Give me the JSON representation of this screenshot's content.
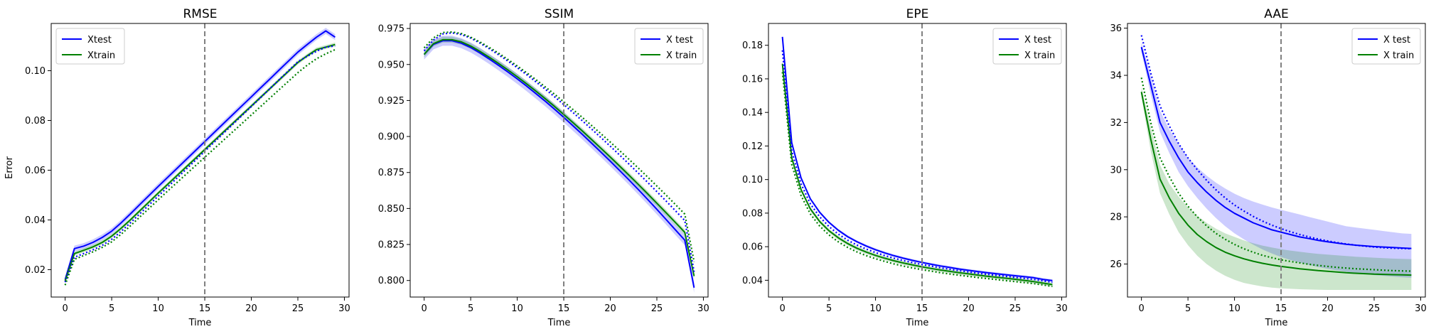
{
  "figure": {
    "ylabel": "Error"
  },
  "colors": {
    "test": "#0000ff",
    "train": "#008000",
    "vline": "#7f7f7f"
  },
  "chart_data": [
    {
      "type": "line",
      "title": "RMSE",
      "xlabel": "Time",
      "ylabel": "Error",
      "xlim": [
        -1.5,
        30.5
      ],
      "ylim": [
        0.009,
        0.119
      ],
      "xticks": [
        0,
        5,
        10,
        15,
        20,
        25,
        30
      ],
      "yticks": [
        0.02,
        0.04,
        0.06,
        0.08,
        0.1
      ],
      "ytick_labels": [
        "0.02",
        "0.04",
        "0.06",
        "0.08",
        "0.10"
      ],
      "vline_x": 15,
      "legend": {
        "position": "top-left",
        "entries": [
          "Xtest",
          "Xtrain"
        ]
      },
      "x": [
        0,
        1,
        2,
        3,
        4,
        5,
        6,
        7,
        8,
        9,
        10,
        11,
        12,
        13,
        14,
        15,
        16,
        17,
        18,
        19,
        20,
        21,
        22,
        23,
        24,
        25,
        26,
        27,
        28,
        29
      ],
      "series": [
        {
          "name": "Xtest",
          "key": "test",
          "style": "solid",
          "values": [
            0.016,
            0.0285,
            0.0295,
            0.031,
            0.033,
            0.0355,
            0.0388,
            0.0424,
            0.0461,
            0.0498,
            0.0535,
            0.0571,
            0.0607,
            0.0643,
            0.0679,
            0.0715,
            0.0751,
            0.0787,
            0.0823,
            0.0859,
            0.0895,
            0.0931,
            0.0967,
            0.1003,
            0.1039,
            0.1075,
            0.1105,
            0.1135,
            0.116,
            0.1135
          ],
          "band": 0.0012
        },
        {
          "name": "Xtrain",
          "key": "train",
          "style": "solid",
          "values": [
            0.0155,
            0.0265,
            0.0278,
            0.0292,
            0.031,
            0.0335,
            0.0366,
            0.04,
            0.0436,
            0.0472,
            0.0508,
            0.0543,
            0.0578,
            0.0613,
            0.0648,
            0.0683,
            0.0718,
            0.0753,
            0.0788,
            0.0823,
            0.0858,
            0.0893,
            0.0928,
            0.0963,
            0.0998,
            0.1033,
            0.106,
            0.1085,
            0.1095,
            0.1105
          ],
          "band": 0.0008
        },
        {
          "key": "test",
          "style": "dotted",
          "values": [
            0.015,
            0.025,
            0.0265,
            0.028,
            0.0298,
            0.0322,
            0.0353,
            0.0388,
            0.0424,
            0.046,
            0.0496,
            0.0532,
            0.0568,
            0.0604,
            0.064,
            0.0676,
            0.0712,
            0.0748,
            0.0784,
            0.082,
            0.0856,
            0.0892,
            0.0928,
            0.0964,
            0.1,
            0.1036,
            0.1058,
            0.1078,
            0.1095,
            0.11
          ]
        },
        {
          "key": "train",
          "style": "dotted",
          "values": [
            0.0138,
            0.0242,
            0.0257,
            0.0272,
            0.029,
            0.0312,
            0.0342,
            0.0376,
            0.0411,
            0.0446,
            0.0481,
            0.0516,
            0.055,
            0.0584,
            0.0618,
            0.0652,
            0.0686,
            0.072,
            0.0754,
            0.0788,
            0.0822,
            0.0856,
            0.089,
            0.0924,
            0.0958,
            0.0992,
            0.1022,
            0.1048,
            0.1068,
            0.1085
          ]
        }
      ]
    },
    {
      "type": "line",
      "title": "SSIM",
      "xlabel": "Time",
      "ylabel": "",
      "xlim": [
        -1.5,
        30.5
      ],
      "ylim": [
        0.7885,
        0.9785
      ],
      "xticks": [
        0,
        5,
        10,
        15,
        20,
        25,
        30
      ],
      "yticks": [
        0.8,
        0.825,
        0.85,
        0.875,
        0.9,
        0.925,
        0.95,
        0.975
      ],
      "ytick_labels": [
        "0.800",
        "0.825",
        "0.850",
        "0.875",
        "0.900",
        "0.925",
        "0.950",
        "0.975"
      ],
      "vline_x": 15,
      "legend": {
        "position": "top-right",
        "entries": [
          "X test",
          "X train"
        ]
      },
      "x": [
        0,
        1,
        2,
        3,
        4,
        5,
        6,
        7,
        8,
        9,
        10,
        11,
        12,
        13,
        14,
        15,
        16,
        17,
        18,
        19,
        20,
        21,
        22,
        23,
        24,
        25,
        26,
        27,
        28,
        29
      ],
      "series": [
        {
          "name": "X test",
          "key": "test",
          "style": "solid",
          "values": [
            0.957,
            0.964,
            0.9665,
            0.9665,
            0.9648,
            0.9618,
            0.958,
            0.9538,
            0.9494,
            0.9448,
            0.94,
            0.935,
            0.9298,
            0.9245,
            0.919,
            0.9133,
            0.9074,
            0.9014,
            0.8953,
            0.8891,
            0.8828,
            0.8764,
            0.8699,
            0.8632,
            0.8564,
            0.8494,
            0.8423,
            0.8351,
            0.828,
            0.795
          ],
          "band": 0.0035
        },
        {
          "name": "X train",
          "key": "train",
          "style": "solid",
          "values": [
            0.957,
            0.9645,
            0.9672,
            0.9672,
            0.9657,
            0.9628,
            0.9591,
            0.955,
            0.9507,
            0.9462,
            0.9415,
            0.9366,
            0.9315,
            0.9263,
            0.9209,
            0.9153,
            0.9096,
            0.9038,
            0.8978,
            0.8918,
            0.8857,
            0.8795,
            0.8732,
            0.8668,
            0.8603,
            0.8537,
            0.847,
            0.8402,
            0.8334,
            0.803
          ],
          "band": 0.002
        },
        {
          "key": "test",
          "style": "dotted",
          "values": [
            0.9595,
            0.967,
            0.9712,
            0.972,
            0.9708,
            0.9684,
            0.9649,
            0.961,
            0.9568,
            0.9524,
            0.9478,
            0.943,
            0.938,
            0.9329,
            0.9276,
            0.9222,
            0.9166,
            0.9109,
            0.9051,
            0.8992,
            0.8932,
            0.8871,
            0.8809,
            0.8746,
            0.8682,
            0.8617,
            0.8551,
            0.8484,
            0.8416,
            0.806
          ]
        },
        {
          "key": "train",
          "style": "dotted",
          "values": [
            0.9615,
            0.9685,
            0.9722,
            0.9726,
            0.9715,
            0.969,
            0.9656,
            0.9618,
            0.9578,
            0.9535,
            0.949,
            0.9443,
            0.9395,
            0.9345,
            0.9294,
            0.9241,
            0.9187,
            0.9132,
            0.9076,
            0.9019,
            0.8961,
            0.8902,
            0.8842,
            0.8781,
            0.8719,
            0.8656,
            0.8592,
            0.8527,
            0.8461,
            0.813
          ]
        }
      ]
    },
    {
      "type": "line",
      "title": "EPE",
      "xlabel": "Time",
      "ylabel": "",
      "xlim": [
        -1.5,
        30.5
      ],
      "ylim": [
        0.03,
        0.193
      ],
      "xticks": [
        0,
        5,
        10,
        15,
        20,
        25,
        30
      ],
      "yticks": [
        0.04,
        0.06,
        0.08,
        0.1,
        0.12,
        0.14,
        0.16,
        0.18
      ],
      "ytick_labels": [
        "0.04",
        "0.06",
        "0.08",
        "0.10",
        "0.12",
        "0.14",
        "0.16",
        "0.18"
      ],
      "vline_x": 15,
      "legend": {
        "position": "top-right",
        "entries": [
          "X test",
          "X train"
        ]
      },
      "x": [
        0,
        1,
        2,
        3,
        4,
        5,
        6,
        7,
        8,
        9,
        10,
        11,
        12,
        13,
        14,
        15,
        16,
        17,
        18,
        19,
        20,
        21,
        22,
        23,
        24,
        25,
        26,
        27,
        28,
        29
      ],
      "series": [
        {
          "name": "X test",
          "key": "test",
          "style": "solid",
          "values": [
            0.185,
            0.122,
            0.101,
            0.0885,
            0.0805,
            0.0745,
            0.0698,
            0.066,
            0.063,
            0.0604,
            0.0582,
            0.0563,
            0.0546,
            0.0531,
            0.0518,
            0.0506,
            0.0495,
            0.0485,
            0.0476,
            0.0467,
            0.0459,
            0.0452,
            0.0445,
            0.0439,
            0.0433,
            0.0427,
            0.0421,
            0.0415,
            0.0405,
            0.0398
          ],
          "band": 0.0008
        },
        {
          "name": "X train",
          "key": "train",
          "style": "solid",
          "values": [
            0.169,
            0.113,
            0.094,
            0.0825,
            0.075,
            0.0695,
            0.0653,
            0.0619,
            0.0591,
            0.0568,
            0.0548,
            0.0531,
            0.0516,
            0.0503,
            0.0491,
            0.048,
            0.047,
            0.0461,
            0.0453,
            0.0445,
            0.0438,
            0.0431,
            0.0424,
            0.0418,
            0.0412,
            0.0406,
            0.0399,
            0.0392,
            0.0383,
            0.0374
          ],
          "band": 0.0012
        },
        {
          "key": "test",
          "style": "dotted",
          "values": [
            0.177,
            0.117,
            0.0975,
            0.0855,
            0.0778,
            0.072,
            0.0675,
            0.0639,
            0.061,
            0.0586,
            0.0565,
            0.0547,
            0.0531,
            0.0517,
            0.0505,
            0.0494,
            0.0484,
            0.0474,
            0.0465,
            0.0457,
            0.0449,
            0.0442,
            0.0435,
            0.0429,
            0.0423,
            0.0417,
            0.0411,
            0.0405,
            0.0396,
            0.0388
          ]
        },
        {
          "key": "train",
          "style": "dotted",
          "values": [
            0.164,
            0.109,
            0.0905,
            0.0795,
            0.0723,
            0.067,
            0.0629,
            0.0596,
            0.0569,
            0.0547,
            0.0528,
            0.0512,
            0.0497,
            0.0484,
            0.0473,
            0.0463,
            0.0454,
            0.0445,
            0.0437,
            0.043,
            0.0423,
            0.0416,
            0.041,
            0.0404,
            0.0398,
            0.0392,
            0.0386,
            0.038,
            0.0372,
            0.0363
          ]
        }
      ]
    },
    {
      "type": "line",
      "title": "AAE",
      "xlabel": "Time",
      "ylabel": "",
      "xlim": [
        -1.5,
        30.5
      ],
      "ylim": [
        24.6,
        36.2
      ],
      "xticks": [
        0,
        5,
        10,
        15,
        20,
        25,
        30
      ],
      "yticks": [
        26,
        28,
        30,
        32,
        34,
        36
      ],
      "ytick_labels": [
        "26",
        "28",
        "30",
        "32",
        "34",
        "36"
      ],
      "vline_x": 15,
      "legend": {
        "position": "top-right",
        "entries": [
          "X test",
          "X train"
        ]
      },
      "x": [
        0,
        1,
        2,
        3,
        4,
        5,
        6,
        7,
        8,
        9,
        10,
        11,
        12,
        13,
        14,
        15,
        16,
        17,
        18,
        19,
        20,
        21,
        22,
        23,
        24,
        25,
        26,
        27,
        28,
        29
      ],
      "series": [
        {
          "name": "X test",
          "key": "test",
          "style": "solid",
          "values": [
            35.2,
            33.6,
            32.0,
            31.2,
            30.5,
            29.9,
            29.45,
            29.05,
            28.7,
            28.4,
            28.15,
            27.95,
            27.75,
            27.6,
            27.45,
            27.35,
            27.25,
            27.15,
            27.08,
            27.0,
            26.94,
            26.89,
            26.84,
            26.8,
            26.77,
            26.74,
            26.72,
            26.7,
            26.68,
            26.66
          ],
          "band_lo": [
            35.0,
            33.2,
            31.6,
            30.7,
            29.9,
            29.3,
            28.8,
            28.35,
            27.95,
            27.6,
            27.3,
            27.05,
            26.82,
            26.62,
            26.45,
            26.3,
            26.17,
            26.06,
            25.96,
            25.87,
            25.8,
            25.73,
            25.67,
            25.62,
            25.57,
            25.53,
            25.5,
            25.47,
            25.44,
            25.42
          ],
          "band_hi": [
            35.4,
            34.0,
            32.5,
            31.7,
            31.1,
            30.5,
            30.1,
            29.75,
            29.45,
            29.2,
            28.98,
            28.8,
            28.65,
            28.52,
            28.4,
            28.3,
            28.2,
            28.1,
            28.0,
            27.9,
            27.8,
            27.7,
            27.6,
            27.55,
            27.5,
            27.45,
            27.4,
            27.35,
            27.3,
            27.28
          ]
        },
        {
          "name": "X train",
          "key": "train",
          "style": "solid",
          "values": [
            33.3,
            31.3,
            29.6,
            28.8,
            28.15,
            27.65,
            27.25,
            26.95,
            26.7,
            26.5,
            26.35,
            26.22,
            26.12,
            26.03,
            25.96,
            25.9,
            25.85,
            25.8,
            25.76,
            25.72,
            25.69,
            25.66,
            25.63,
            25.61,
            25.59,
            25.57,
            25.56,
            25.55,
            25.54,
            25.53
          ],
          "band_lo": [
            33.1,
            30.8,
            29.0,
            28.1,
            27.35,
            26.8,
            26.35,
            26.0,
            25.72,
            25.5,
            25.33,
            25.2,
            25.12,
            25.05,
            25.0,
            24.97,
            24.95,
            24.93,
            24.92,
            24.91,
            24.9,
            24.9,
            24.9,
            24.9,
            24.9,
            24.9,
            24.9,
            24.9,
            24.9,
            24.9
          ],
          "band_hi": [
            33.5,
            31.8,
            30.2,
            29.4,
            28.85,
            28.4,
            28.05,
            27.75,
            27.5,
            27.3,
            27.15,
            27.0,
            26.88,
            26.78,
            26.7,
            26.63,
            26.57,
            26.52,
            26.47,
            26.43,
            26.4,
            26.37,
            26.34,
            26.31,
            26.29,
            26.27,
            26.25,
            26.23,
            26.22,
            26.21
          ]
        },
        {
          "key": "test",
          "style": "dotted",
          "values": [
            35.7,
            34.1,
            32.7,
            31.85,
            31.1,
            30.5,
            30.0,
            29.55,
            29.15,
            28.8,
            28.5,
            28.25,
            28.02,
            27.82,
            27.65,
            27.5,
            27.37,
            27.25,
            27.15,
            27.06,
            26.98,
            26.91,
            26.85,
            26.8,
            26.76,
            26.72,
            26.69,
            26.67,
            26.66,
            26.65
          ]
        },
        {
          "key": "train",
          "style": "dotted",
          "values": [
            33.9,
            32.0,
            30.5,
            29.7,
            29.0,
            28.45,
            28.0,
            27.62,
            27.3,
            27.05,
            26.83,
            26.65,
            26.5,
            26.37,
            26.27,
            26.18,
            26.11,
            26.05,
            25.99,
            25.94,
            25.9,
            25.86,
            25.83,
            25.8,
            25.78,
            25.76,
            25.74,
            25.72,
            25.71,
            25.7
          ]
        }
      ]
    }
  ]
}
